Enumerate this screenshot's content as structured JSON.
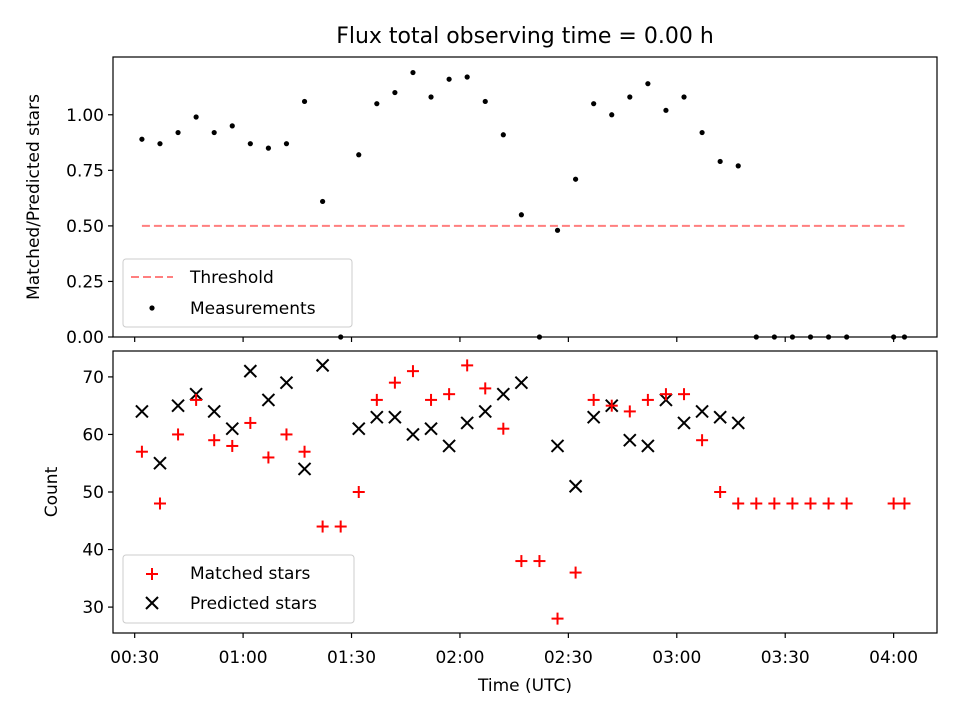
{
  "title": "Flux total observing time = 0.00 h",
  "chart_data": [
    {
      "type": "scatter",
      "title": "Flux total observing time = 0.00 h",
      "xlabel": "",
      "ylabel": "Matched/Predicted stars",
      "xlim": [
        "00:24",
        "04:12"
      ],
      "ylim": [
        0,
        1.26
      ],
      "yticks": [
        0.0,
        0.25,
        0.5,
        0.75,
        1.0
      ],
      "ytick_labels": [
        "0.00",
        "0.25",
        "0.50",
        "0.75",
        "1.00"
      ],
      "grid": false,
      "legend_position": "lower-left",
      "series": [
        {
          "name": "Threshold",
          "kind": "line",
          "style": "dashed",
          "color": "#ff7f7f",
          "x": [
            "00:32",
            "04:03"
          ],
          "y": [
            0.5,
            0.5
          ]
        },
        {
          "name": "Measurements",
          "kind": "scatter",
          "marker": "dot",
          "color": "#000000",
          "x": [
            "00:32",
            "00:37",
            "00:42",
            "00:47",
            "00:52",
            "00:57",
            "01:02",
            "01:07",
            "01:12",
            "01:17",
            "01:22",
            "01:27",
            "01:32",
            "01:37",
            "01:42",
            "01:47",
            "01:52",
            "01:57",
            "02:02",
            "02:07",
            "02:12",
            "02:17",
            "02:22",
            "02:27",
            "02:32",
            "02:37",
            "02:42",
            "02:47",
            "02:52",
            "02:57",
            "03:02",
            "03:07",
            "03:12",
            "03:17",
            "03:22",
            "03:27",
            "03:32",
            "03:37",
            "03:42",
            "03:47",
            "04:00",
            "04:03"
          ],
          "y": [
            0.89,
            0.87,
            0.92,
            0.99,
            0.92,
            0.95,
            0.87,
            0.85,
            0.87,
            1.06,
            0.61,
            0.0,
            0.82,
            1.05,
            1.1,
            1.19,
            1.08,
            1.16,
            1.17,
            1.06,
            0.91,
            0.55,
            0.0,
            0.48,
            0.71,
            1.05,
            1.0,
            1.08,
            1.14,
            1.02,
            1.08,
            0.92,
            0.79,
            0.77,
            0.0,
            0.0,
            0.0,
            0.0,
            0.0,
            0.0,
            0.0,
            0.0
          ]
        }
      ]
    },
    {
      "type": "scatter",
      "title": "",
      "xlabel": "Time (UTC)",
      "ylabel": "Count",
      "xlim": [
        "00:24",
        "04:12"
      ],
      "ylim": [
        25.5,
        74.5
      ],
      "xticks": [
        "00:30",
        "01:00",
        "01:30",
        "02:00",
        "02:30",
        "03:00",
        "03:30",
        "04:00"
      ],
      "yticks": [
        30,
        40,
        50,
        60,
        70
      ],
      "ytick_labels": [
        "30",
        "40",
        "50",
        "60",
        "70"
      ],
      "grid": false,
      "legend_position": "lower-left",
      "series": [
        {
          "name": "Matched stars",
          "marker": "plus",
          "color": "#ff0000",
          "x": [
            "00:32",
            "00:37",
            "00:42",
            "00:47",
            "00:52",
            "00:57",
            "01:02",
            "01:07",
            "01:12",
            "01:17",
            "01:22",
            "01:27",
            "01:32",
            "01:37",
            "01:42",
            "01:47",
            "01:52",
            "01:57",
            "02:02",
            "02:07",
            "02:12",
            "02:17",
            "02:22",
            "02:27",
            "02:32",
            "02:37",
            "02:42",
            "02:47",
            "02:52",
            "02:57",
            "03:02",
            "03:07",
            "03:12",
            "03:17",
            "03:22",
            "03:27",
            "03:32",
            "03:37",
            "03:42",
            "03:47",
            "04:00",
            "04:03"
          ],
          "y": [
            57,
            48,
            60,
            66,
            59,
            58,
            62,
            56,
            60,
            57,
            44,
            44,
            50,
            66,
            69,
            71,
            66,
            67,
            72,
            68,
            61,
            38,
            38,
            28,
            36,
            66,
            65,
            64,
            66,
            67,
            67,
            59,
            50,
            48,
            48,
            48,
            48,
            48,
            48,
            48,
            48,
            48
          ]
        },
        {
          "name": "Predicted stars",
          "marker": "x",
          "color": "#000000",
          "x": [
            "00:32",
            "00:37",
            "00:42",
            "00:47",
            "00:52",
            "00:57",
            "01:02",
            "01:07",
            "01:12",
            "01:17",
            "01:22",
            "01:32",
            "01:37",
            "01:42",
            "01:47",
            "01:52",
            "01:57",
            "02:02",
            "02:07",
            "02:12",
            "02:17",
            "02:27",
            "02:32",
            "02:37",
            "02:42",
            "02:47",
            "02:52",
            "02:57",
            "03:02",
            "03:07",
            "03:12",
            "03:17"
          ],
          "y": [
            64,
            55,
            65,
            67,
            64,
            61,
            71,
            66,
            69,
            54,
            72,
            61,
            63,
            63,
            60,
            61,
            58,
            62,
            64,
            67,
            69,
            58,
            51,
            63,
            65,
            59,
            58,
            66,
            62,
            64,
            63,
            62
          ]
        }
      ]
    }
  ]
}
